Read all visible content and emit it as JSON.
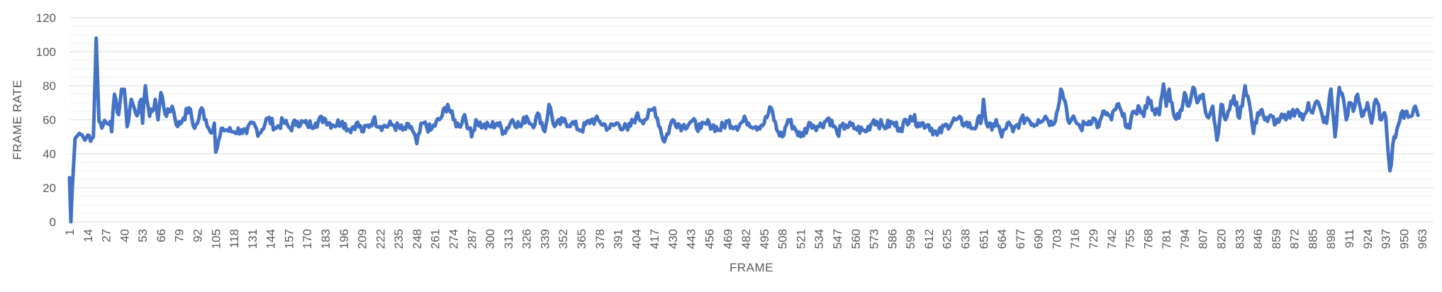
{
  "chart_data": {
    "type": "line",
    "xlabel": "FRAME",
    "ylabel": "FRAME RATE",
    "x_first": 1,
    "x_last": 971,
    "x_tick_labels": [
      "1",
      "14",
      "27",
      "40",
      "53",
      "66",
      "79",
      "92",
      "105",
      "118",
      "131",
      "144",
      "157",
      "170",
      "183",
      "196",
      "209",
      "222",
      "235",
      "248",
      "261",
      "274",
      "287",
      "300",
      "313",
      "326",
      "339",
      "352",
      "365",
      "378",
      "391",
      "404",
      "417",
      "430",
      "443",
      "456",
      "469",
      "482",
      "495",
      "508",
      "521",
      "534",
      "547",
      "560",
      "573",
      "586",
      "599",
      "612",
      "625",
      "638",
      "651",
      "664",
      "677",
      "690",
      "703",
      "716",
      "729",
      "742",
      "755",
      "768",
      "781",
      "794",
      "807",
      "820",
      "833",
      "846",
      "859",
      "872",
      "885",
      "898",
      "911",
      "924",
      "937",
      "950",
      "963"
    ],
    "y_tick_labels": [
      "0",
      "20",
      "40",
      "60",
      "80",
      "100",
      "120"
    ],
    "ylim": [
      0,
      120
    ],
    "major_grid_step": 20,
    "minor_grid_step": 5,
    "grid": true,
    "legend": "none",
    "line_color": "#4472C4",
    "grid_color": "#D9D9D9",
    "minor_grid_color": "#EFEFEF",
    "series": [
      {
        "anchor_x": [
          1,
          2,
          3,
          5,
          8,
          10,
          12,
          14,
          17,
          18,
          20,
          22,
          25,
          30,
          31,
          33,
          36,
          38,
          40,
          42,
          45,
          47,
          50,
          52,
          53,
          55,
          58,
          60,
          62,
          64,
          66,
          70,
          74,
          78,
          82,
          86,
          90,
          92,
          95,
          98,
          101,
          104,
          105,
          110,
          116,
          123,
          127,
          131,
          136,
          142,
          148,
          153,
          158,
          163,
          170,
          176,
          182,
          188,
          195,
          200,
          205,
          210,
          217,
          224,
          231,
          238,
          244,
          248,
          252,
          258,
          265,
          270,
          274,
          278,
          282,
          285,
          287,
          290,
          295,
          300,
          305,
          310,
          316,
          322,
          326,
          330,
          335,
          339,
          342,
          346,
          352,
          358,
          365,
          372,
          378,
          385,
          391,
          398,
          404,
          410,
          417,
          424,
          430,
          437,
          443,
          450,
          456,
          463,
          469,
          475,
          482,
          489,
          495,
          500,
          504,
          508,
          512,
          516,
          521,
          528,
          534,
          541,
          547,
          553,
          560,
          567,
          573,
          580,
          586,
          592,
          599,
          605,
          612,
          618,
          625,
          631,
          638,
          644,
          650,
          651,
          653,
          657,
          660,
          664,
          668,
          672,
          677,
          682,
          688,
          690,
          695,
          700,
          703,
          706,
          709,
          712,
          716,
          720,
          724,
          729,
          733,
          737,
          742,
          746,
          750,
          755,
          758,
          762,
          765,
          768,
          772,
          776,
          779,
          781,
          783,
          786,
          790,
          794,
          797,
          800,
          803,
          807,
          810,
          814,
          817,
          820,
          823,
          826,
          829,
          833,
          837,
          840,
          843,
          846,
          849,
          851,
          853,
          856,
          859,
          862,
          866,
          870,
          874,
          878,
          882,
          885,
          888,
          892,
          895,
          898,
          901,
          904,
          907,
          909,
          911,
          914,
          917,
          920,
          924,
          927,
          930,
          934,
          937,
          940,
          943,
          946,
          948,
          950,
          952,
          955,
          958,
          961,
          963,
          966,
          968,
          971
        ],
        "anchor_y": [
          26,
          0,
          20,
          49,
          52,
          51,
          48,
          51,
          49,
          50,
          108,
          59,
          57,
          59,
          53,
          75,
          63,
          78,
          78,
          56,
          72,
          67,
          64,
          72,
          58,
          80,
          62,
          65,
          72,
          60,
          76,
          62,
          68,
          56,
          61,
          67,
          55,
          58,
          67,
          60,
          53,
          58,
          41,
          55,
          53,
          54,
          52,
          58,
          52,
          61,
          55,
          59,
          55,
          59,
          57,
          58,
          61,
          57,
          59,
          54,
          58,
          53,
          60,
          56,
          57,
          54,
          56,
          46,
          58,
          54,
          61,
          69,
          60,
          56,
          63,
          55,
          50,
          60,
          56,
          56,
          58,
          53,
          60,
          56,
          62,
          57,
          63,
          53,
          69,
          56,
          59,
          58,
          54,
          60,
          59,
          55,
          58,
          54,
          62,
          60,
          67,
          47,
          60,
          56,
          59,
          55,
          58,
          54,
          59,
          56,
          60,
          56,
          58,
          67,
          54,
          50,
          60,
          56,
          50,
          58,
          56,
          61,
          52,
          57,
          55,
          53,
          60,
          56,
          58,
          55,
          62,
          58,
          57,
          51,
          57,
          60,
          58,
          55,
          62,
          72,
          58,
          54,
          60,
          50,
          58,
          53,
          59,
          61,
          57,
          60,
          62,
          57,
          64,
          78,
          71,
          58,
          60,
          55,
          58,
          61,
          56,
          65,
          60,
          69,
          62,
          55,
          65,
          67,
          62,
          73,
          66,
          63,
          81,
          68,
          78,
          64,
          61,
          76,
          68,
          79,
          70,
          75,
          62,
          68,
          48,
          69,
          60,
          66,
          74,
          61,
          80,
          70,
          52,
          64,
          66,
          60,
          59,
          62,
          58,
          61,
          60,
          64,
          66,
          60,
          70,
          64,
          71,
          62,
          58,
          78,
          50,
          79,
          72,
          60,
          70,
          65,
          75,
          62,
          70,
          58,
          72,
          60,
          62,
          30,
          50,
          57,
          64,
          61,
          65,
          62,
          68,
          60
        ]
      }
    ]
  }
}
